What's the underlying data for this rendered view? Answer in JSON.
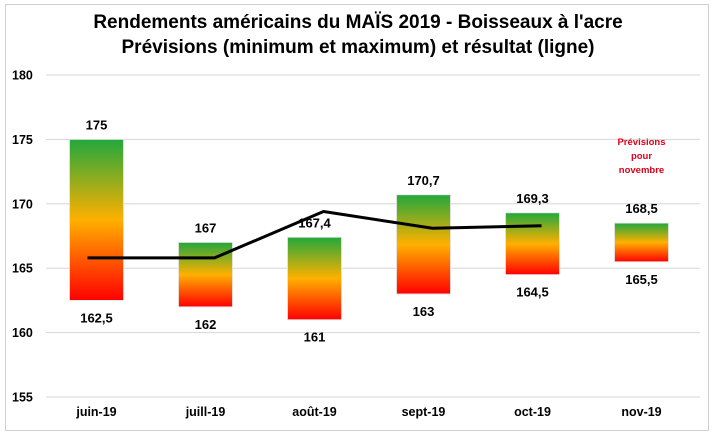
{
  "chart_data": {
    "type": "bar",
    "title": "Rendements américains du MAÏS 2019 - Boisseaux à l'acre",
    "subtitle": "Prévisions (minimum et maximum) et résultat (ligne)",
    "xlabel": "",
    "ylabel": "",
    "ylim": [
      155,
      180
    ],
    "yticks": [
      180,
      175,
      170,
      165,
      160,
      155
    ],
    "grid": true,
    "categories": [
      "juin-19",
      "juill-19",
      "août-19",
      "sept-19",
      "oct-19",
      "nov-19"
    ],
    "series": [
      {
        "name": "Prévisions (minimum et maximum)",
        "type": "floating-bar",
        "min": [
          162.5,
          162,
          161,
          163,
          164.5,
          165.5
        ],
        "max": [
          175,
          167,
          167.4,
          170.7,
          169.3,
          168.5
        ],
        "min_labels": [
          "162,5",
          "162",
          "161",
          "163",
          "164,5",
          "165,5"
        ],
        "max_labels": [
          "175",
          "167",
          "167,4",
          "170,7",
          "169,3",
          "168,5"
        ],
        "gradient": {
          "top": "#22a83c",
          "middle": "#ffb000",
          "bottom": "#ff0000"
        }
      },
      {
        "name": "Résultat (ligne)",
        "type": "line",
        "values": [
          165.8,
          165.8,
          169.4,
          168.1,
          168.3,
          null
        ],
        "color": "#000000"
      }
    ],
    "annotation": {
      "lines": [
        "Prévisions",
        "pour",
        "novembre"
      ],
      "category": "nov-19",
      "color": "#e0001a"
    }
  }
}
